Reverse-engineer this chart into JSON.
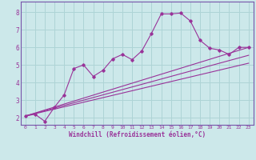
{
  "bg_color": "#cce8ea",
  "grid_color": "#aed4d6",
  "line_color": "#993399",
  "spine_color": "#7755aa",
  "xlabel": "Windchill (Refroidissement éolien,°C)",
  "xlim": [
    -0.5,
    23.5
  ],
  "ylim": [
    1.6,
    8.6
  ],
  "xticks": [
    0,
    1,
    2,
    3,
    4,
    5,
    6,
    7,
    8,
    9,
    10,
    11,
    12,
    13,
    14,
    15,
    16,
    17,
    18,
    19,
    20,
    21,
    22,
    23
  ],
  "yticks": [
    2,
    3,
    4,
    5,
    6,
    7,
    8
  ],
  "series1_x": [
    0,
    1,
    2,
    3,
    4,
    5,
    6,
    7,
    8,
    9,
    10,
    11,
    12,
    13,
    14,
    15,
    16,
    17,
    18,
    19,
    20,
    21,
    22,
    23
  ],
  "series1_y": [
    2.1,
    2.2,
    1.8,
    2.6,
    3.3,
    4.8,
    5.0,
    4.35,
    4.7,
    5.35,
    5.6,
    5.3,
    5.8,
    6.8,
    7.9,
    7.9,
    7.95,
    7.5,
    6.4,
    5.95,
    5.85,
    5.6,
    6.0,
    6.0
  ],
  "series2_x": [
    0,
    23
  ],
  "series2_y": [
    2.1,
    6.0
  ],
  "series3_x": [
    0,
    23
  ],
  "series3_y": [
    2.1,
    5.55
  ],
  "series4_x": [
    0,
    23
  ],
  "series4_y": [
    2.1,
    5.1
  ]
}
